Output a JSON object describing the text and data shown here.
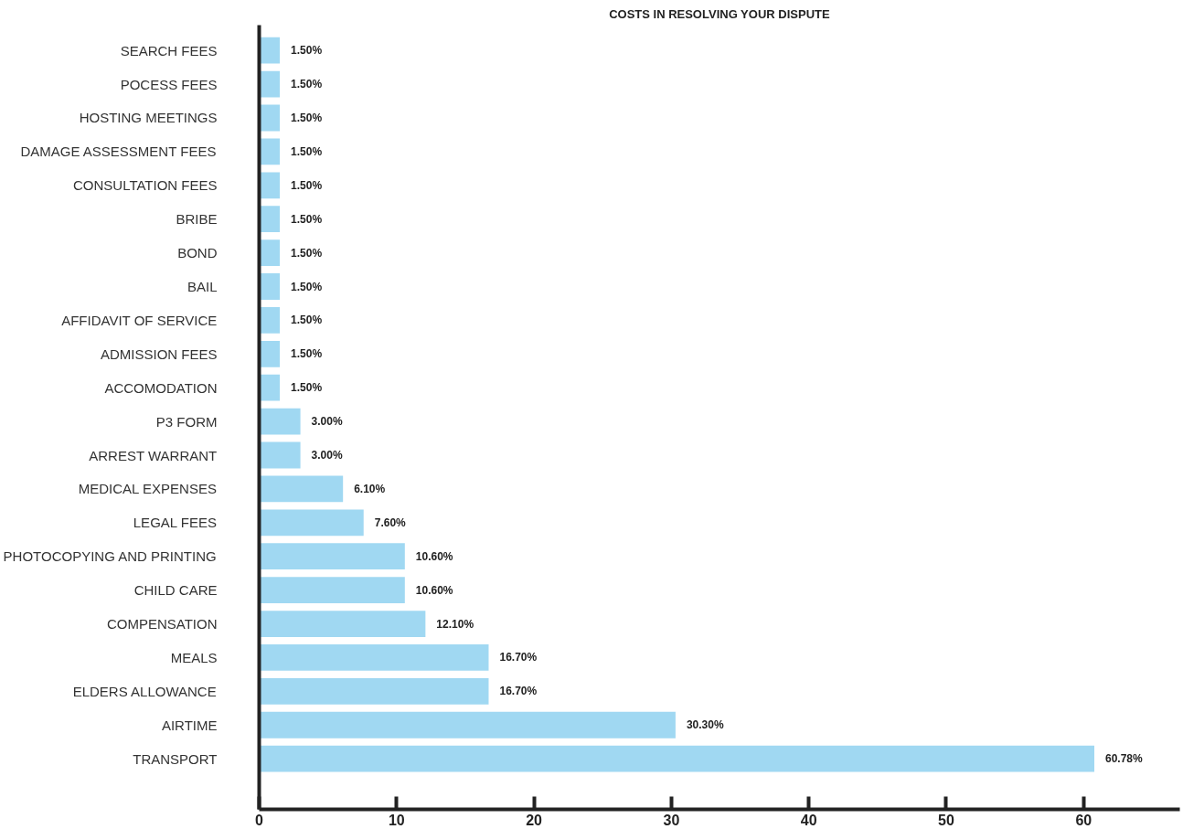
{
  "chart_data": {
    "type": "bar",
    "orientation": "horizontal",
    "title": "COSTS IN RESOLVING YOUR DISPUTE",
    "categories": [
      "SEARCH FEES",
      "POCESS FEES",
      "HOSTING MEETINGS",
      "DAMAGE ASSESSMENT FEES",
      "CONSULTATION FEES",
      "BRIBE",
      "BOND",
      "BAIL",
      "AFFIDAVIT OF SERVICE",
      "ADMISSION FEES",
      "ACCOMODATION",
      "P3 FORM",
      "ARREST WARRANT",
      "MEDICAL EXPENSES",
      "LEGAL FEES",
      "PHOTOCOPYING AND PRINTING",
      "CHILD CARE",
      "COMPENSATION",
      "MEALS",
      "ELDERS ALLOWANCE",
      "AIRTIME",
      "TRANSPORT"
    ],
    "values": [
      1.5,
      1.5,
      1.5,
      1.5,
      1.5,
      1.5,
      1.5,
      1.5,
      1.5,
      1.5,
      1.5,
      3.0,
      3.0,
      6.1,
      7.6,
      10.6,
      10.6,
      12.1,
      16.7,
      16.7,
      30.3,
      60.78
    ],
    "value_labels": [
      "1.50%",
      "1.50%",
      "1.50%",
      "1.50%",
      "1.50%",
      "1.50%",
      "1.50%",
      "1.50%",
      "1.50%",
      "1.50%",
      "1.50%",
      "3.00%",
      "3.00%",
      "6.10%",
      "7.60%",
      "10.60%",
      "10.60%",
      "12.10%",
      "16.70%",
      "16.70%",
      "30.30%",
      "60.78%"
    ],
    "color": "#a0d8f2",
    "xlim": [
      0,
      67
    ],
    "xticks": [
      0,
      10,
      20,
      30,
      40,
      50,
      60
    ]
  }
}
